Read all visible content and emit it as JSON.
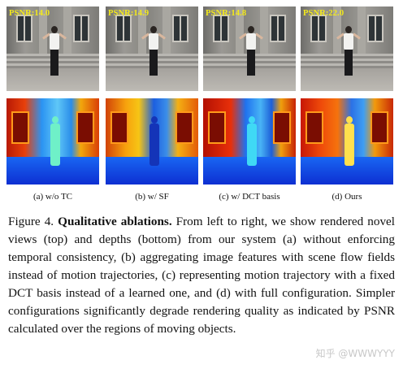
{
  "panels": [
    {
      "psnr": "PSNR:14.0",
      "caption": "(a) w/o TC"
    },
    {
      "psnr": "PSNR:14.9",
      "caption": "(b) w/ SF"
    },
    {
      "psnr": "PSNR:14.8",
      "caption": "(c) w/ DCT basis"
    },
    {
      "psnr": "PSNR:22.0",
      "caption": "(d) Ours"
    }
  ],
  "figure_caption": {
    "label": "Figure 4.",
    "title": "Qualitative ablations.",
    "body": "From left to right, we show rendered novel views (top) and depths (bottom) from our system (a) without enforcing temporal consistency, (b) aggregating image features with scene flow fields instead of motion trajectories, (c) representing motion trajectory with a fixed DCT basis instead of a learned one, and (d) with full configuration. Simpler configurations significantly degrade rendering quality as indicated by PSNR calculated over the regions of moving objects."
  },
  "watermark": "知乎 @WWWYYY",
  "colors": {
    "psnr_text": "#f4ea1a"
  }
}
